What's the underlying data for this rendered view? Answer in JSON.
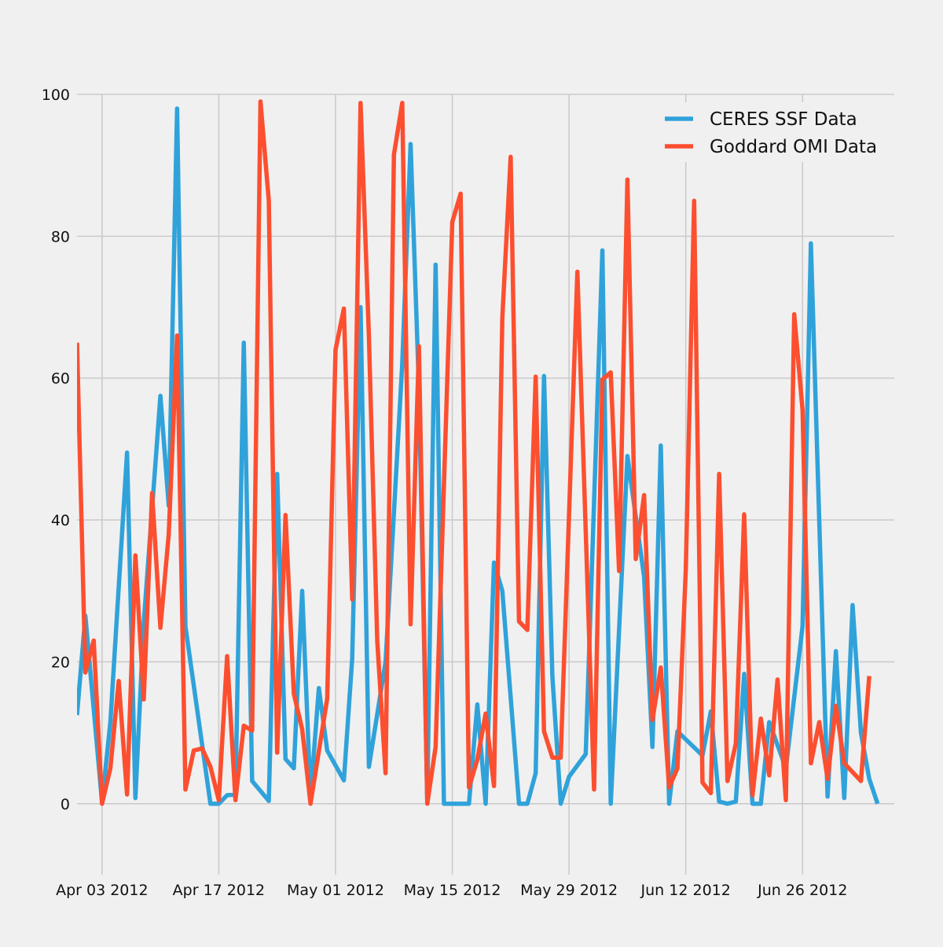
{
  "chart_data": {
    "type": "line",
    "title": "",
    "xlabel": "",
    "ylabel": "",
    "x_range": [
      "2012-03-31",
      "2012-07-07"
    ],
    "ylim": [
      -10,
      100
    ],
    "grid": true,
    "legend_position": "top-right",
    "x_ticks": [
      {
        "date": "2012-04-03",
        "label": "Apr 03 2012"
      },
      {
        "date": "2012-04-17",
        "label": "Apr 17 2012"
      },
      {
        "date": "2012-05-01",
        "label": "May 01 2012"
      },
      {
        "date": "2012-05-15",
        "label": "May 15 2012"
      },
      {
        "date": "2012-05-29",
        "label": "May 29 2012"
      },
      {
        "date": "2012-06-12",
        "label": "Jun 12 2012"
      },
      {
        "date": "2012-06-26",
        "label": "Jun 26 2012"
      }
    ],
    "y_ticks": [
      {
        "value": 0,
        "label": "0"
      },
      {
        "value": 20,
        "label": "20"
      },
      {
        "value": 40,
        "label": "40"
      },
      {
        "value": 60,
        "label": "60"
      },
      {
        "value": 80,
        "label": "80"
      },
      {
        "value": 100,
        "label": "100"
      }
    ],
    "series": [
      {
        "name": "CERES SSF Data",
        "color": "#30a2da",
        "points": [
          [
            "2012-03-31",
            12.5
          ],
          [
            "2012-04-01",
            26.5
          ],
          [
            "2012-04-03",
            0.2
          ],
          [
            "2012-04-04",
            11.5
          ],
          [
            "2012-04-06",
            49.5
          ],
          [
            "2012-04-07",
            0.8
          ],
          [
            "2012-04-08",
            25.5
          ],
          [
            "2012-04-10",
            57.5
          ],
          [
            "2012-04-11",
            42.0
          ],
          [
            "2012-04-12",
            98.0
          ],
          [
            "2012-04-13",
            25.0
          ],
          [
            "2012-04-16",
            0.0
          ],
          [
            "2012-04-17",
            0.0
          ],
          [
            "2012-04-18",
            1.2
          ],
          [
            "2012-04-19",
            1.3
          ],
          [
            "2012-04-20",
            65.0
          ],
          [
            "2012-04-21",
            3.2
          ],
          [
            "2012-04-23",
            0.4
          ],
          [
            "2012-04-24",
            46.5
          ],
          [
            "2012-04-25",
            6.3
          ],
          [
            "2012-04-26",
            5.0
          ],
          [
            "2012-04-27",
            30.0
          ],
          [
            "2012-04-28",
            1.0
          ],
          [
            "2012-04-29",
            16.3
          ],
          [
            "2012-04-30",
            7.5
          ],
          [
            "2012-05-02",
            3.3
          ],
          [
            "2012-05-03",
            20.5
          ],
          [
            "2012-05-04",
            70.0
          ],
          [
            "2012-05-05",
            5.2
          ],
          [
            "2012-05-07",
            20.0
          ],
          [
            "2012-05-09",
            62.0
          ],
          [
            "2012-05-10",
            93.0
          ],
          [
            "2012-05-11",
            58.5
          ],
          [
            "2012-05-12",
            0.5
          ],
          [
            "2012-05-13",
            76.0
          ],
          [
            "2012-05-14",
            0.0
          ],
          [
            "2012-05-17",
            0.0
          ],
          [
            "2012-05-18",
            14.0
          ],
          [
            "2012-05-19",
            0.0
          ],
          [
            "2012-05-20",
            34.0
          ],
          [
            "2012-05-21",
            30.0
          ],
          [
            "2012-05-23",
            0.0
          ],
          [
            "2012-05-24",
            0.0
          ],
          [
            "2012-05-25",
            4.3
          ],
          [
            "2012-05-26",
            60.3
          ],
          [
            "2012-05-27",
            18.0
          ],
          [
            "2012-05-28",
            0.0
          ],
          [
            "2012-05-29",
            3.8
          ],
          [
            "2012-05-31",
            7.0
          ],
          [
            "2012-06-02",
            78.0
          ],
          [
            "2012-06-03",
            0.0
          ],
          [
            "2012-06-05",
            49.0
          ],
          [
            "2012-06-07",
            32.0
          ],
          [
            "2012-06-08",
            8.0
          ],
          [
            "2012-06-09",
            50.5
          ],
          [
            "2012-06-10",
            0.0
          ],
          [
            "2012-06-11",
            10.2
          ],
          [
            "2012-06-14",
            6.8
          ],
          [
            "2012-06-15",
            13.0
          ],
          [
            "2012-06-16",
            0.3
          ],
          [
            "2012-06-17",
            0.0
          ],
          [
            "2012-06-18",
            0.3
          ],
          [
            "2012-06-19",
            18.3
          ],
          [
            "2012-06-20",
            0.0
          ],
          [
            "2012-06-21",
            0.0
          ],
          [
            "2012-06-22",
            11.5
          ],
          [
            "2012-06-24",
            5.0
          ],
          [
            "2012-06-26",
            25.0
          ],
          [
            "2012-06-27",
            79.0
          ],
          [
            "2012-06-29",
            1.0
          ],
          [
            "2012-06-30",
            21.5
          ],
          [
            "2012-07-01",
            0.8
          ],
          [
            "2012-07-02",
            28.0
          ],
          [
            "2012-07-03",
            10.0
          ],
          [
            "2012-07-04",
            3.5
          ],
          [
            "2012-07-05",
            0.0
          ]
        ]
      },
      {
        "name": "Goddard OMI Data",
        "color": "#fc4f30",
        "points": [
          [
            "2012-03-31",
            65.0
          ],
          [
            "2012-04-01",
            18.5
          ],
          [
            "2012-04-02",
            23.0
          ],
          [
            "2012-04-03",
            0.0
          ],
          [
            "2012-04-04",
            5.0
          ],
          [
            "2012-04-05",
            17.3
          ],
          [
            "2012-04-06",
            1.3
          ],
          [
            "2012-04-07",
            35.0
          ],
          [
            "2012-04-08",
            14.7
          ],
          [
            "2012-04-09",
            43.8
          ],
          [
            "2012-04-10",
            24.8
          ],
          [
            "2012-04-11",
            38.0
          ],
          [
            "2012-04-12",
            66.0
          ],
          [
            "2012-04-13",
            2.0
          ],
          [
            "2012-04-14",
            7.5
          ],
          [
            "2012-04-15",
            7.8
          ],
          [
            "2012-04-16",
            5.2
          ],
          [
            "2012-04-17",
            0.5
          ],
          [
            "2012-04-18",
            20.8
          ],
          [
            "2012-04-19",
            0.5
          ],
          [
            "2012-04-20",
            11.0
          ],
          [
            "2012-04-21",
            10.3
          ],
          [
            "2012-04-22",
            99.0
          ],
          [
            "2012-04-23",
            85.0
          ],
          [
            "2012-04-24",
            7.2
          ],
          [
            "2012-04-25",
            40.7
          ],
          [
            "2012-04-26",
            15.5
          ],
          [
            "2012-04-27",
            10.5
          ],
          [
            "2012-04-28",
            0.0
          ],
          [
            "2012-04-30",
            14.8
          ],
          [
            "2012-05-01",
            64.0
          ],
          [
            "2012-05-02",
            69.8
          ],
          [
            "2012-05-03",
            28.8
          ],
          [
            "2012-05-04",
            98.8
          ],
          [
            "2012-05-05",
            66.0
          ],
          [
            "2012-05-06",
            23.0
          ],
          [
            "2012-05-07",
            4.3
          ],
          [
            "2012-05-08",
            91.5
          ],
          [
            "2012-05-09",
            98.8
          ],
          [
            "2012-05-10",
            25.3
          ],
          [
            "2012-05-11",
            64.5
          ],
          [
            "2012-05-12",
            0.0
          ],
          [
            "2012-05-13",
            8.0
          ],
          [
            "2012-05-15",
            82.0
          ],
          [
            "2012-05-16",
            86.0
          ],
          [
            "2012-05-17",
            2.3
          ],
          [
            "2012-05-18",
            6.2
          ],
          [
            "2012-05-19",
            12.7
          ],
          [
            "2012-05-20",
            2.5
          ],
          [
            "2012-05-21",
            68.5
          ],
          [
            "2012-05-22",
            91.2
          ],
          [
            "2012-05-23",
            25.7
          ],
          [
            "2012-05-24",
            24.5
          ],
          [
            "2012-05-25",
            60.2
          ],
          [
            "2012-05-26",
            10.2
          ],
          [
            "2012-05-27",
            6.5
          ],
          [
            "2012-05-28",
            6.5
          ],
          [
            "2012-05-30",
            75.0
          ],
          [
            "2012-06-01",
            2.0
          ],
          [
            "2012-06-02",
            59.8
          ],
          [
            "2012-06-03",
            60.8
          ],
          [
            "2012-06-04",
            32.8
          ],
          [
            "2012-06-05",
            88.0
          ],
          [
            "2012-06-06",
            34.5
          ],
          [
            "2012-06-07",
            43.5
          ],
          [
            "2012-06-08",
            11.8
          ],
          [
            "2012-06-09",
            19.2
          ],
          [
            "2012-06-10",
            2.3
          ],
          [
            "2012-06-11",
            5.0
          ],
          [
            "2012-06-12",
            33.0
          ],
          [
            "2012-06-13",
            85.0
          ],
          [
            "2012-06-14",
            3.0
          ],
          [
            "2012-06-15",
            1.5
          ],
          [
            "2012-06-16",
            46.5
          ],
          [
            "2012-06-17",
            3.2
          ],
          [
            "2012-06-18",
            8.5
          ],
          [
            "2012-06-19",
            40.8
          ],
          [
            "2012-06-20",
            1.2
          ],
          [
            "2012-06-21",
            12.0
          ],
          [
            "2012-06-22",
            4.0
          ],
          [
            "2012-06-23",
            17.5
          ],
          [
            "2012-06-24",
            0.5
          ],
          [
            "2012-06-25",
            69.0
          ],
          [
            "2012-06-26",
            55.5
          ],
          [
            "2012-06-27",
            5.7
          ],
          [
            "2012-06-28",
            11.5
          ],
          [
            "2012-06-29",
            3.5
          ],
          [
            "2012-06-30",
            13.8
          ],
          [
            "2012-07-01",
            5.7
          ],
          [
            "2012-07-03",
            3.2
          ],
          [
            "2012-07-04",
            18.0
          ]
        ]
      }
    ]
  }
}
